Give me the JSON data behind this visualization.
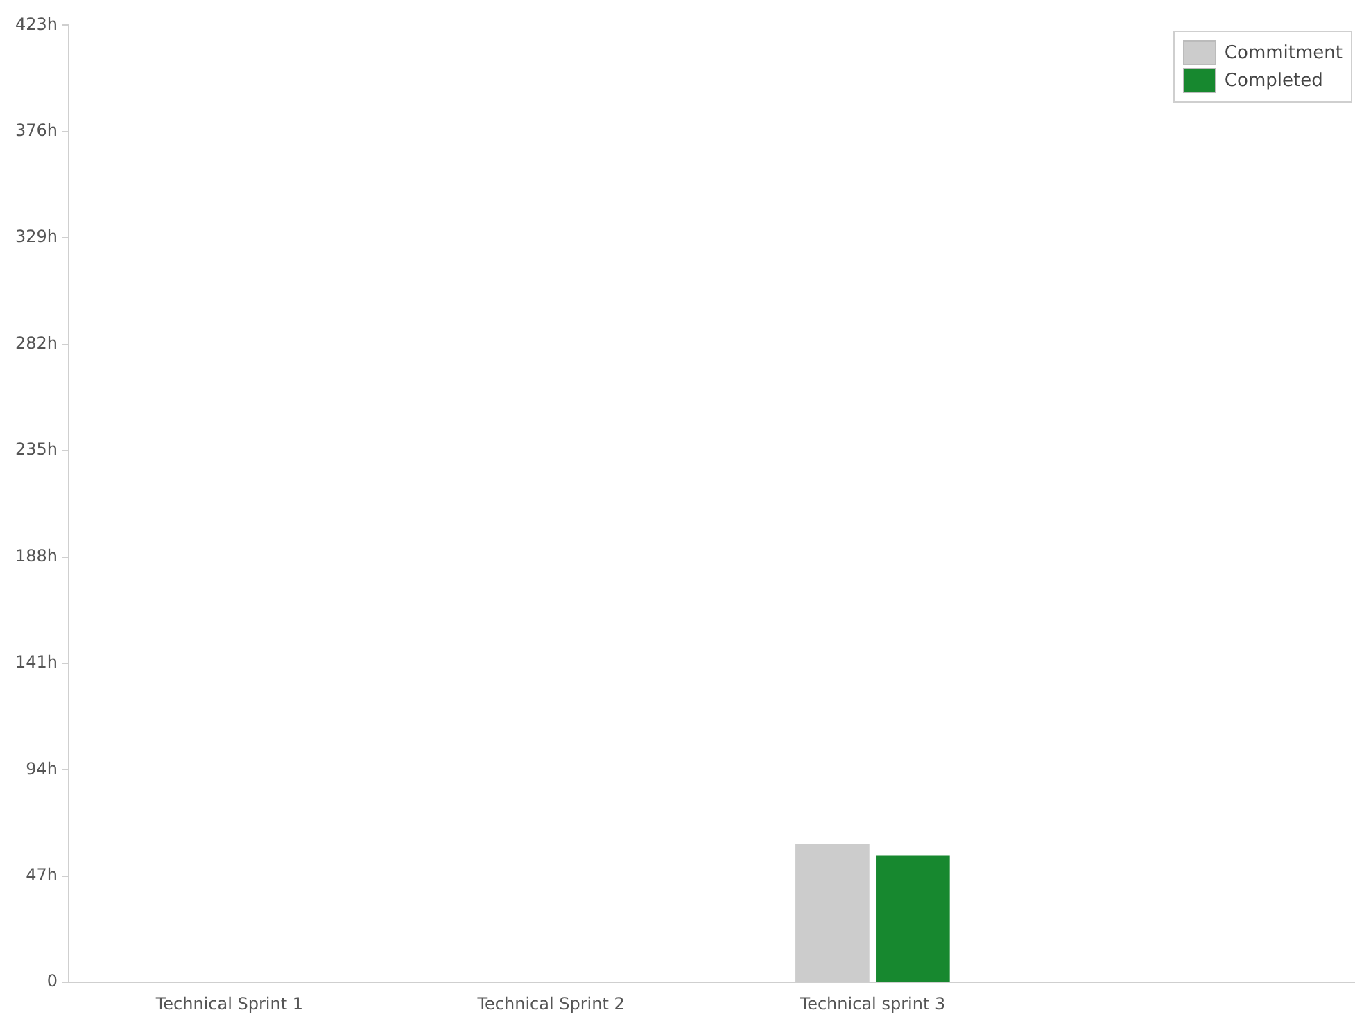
{
  "chart_data": {
    "type": "bar",
    "categories": [
      "Technical Sprint 1",
      "Technical Sprint 2",
      "Technical sprint 3",
      null
    ],
    "series": [
      {
        "name": "Commitment",
        "color": "#cccccc",
        "values": [
          0,
          0,
          61,
          0
        ]
      },
      {
        "name": "Completed",
        "color": "#17882f",
        "values": [
          0,
          0,
          56,
          0
        ]
      }
    ],
    "ylim": [
      0,
      423
    ],
    "yticks": [
      0,
      {
        "value": 47,
        "label": "47h"
      },
      {
        "value": 94,
        "label": "94h"
      },
      {
        "value": 141,
        "label": "141h"
      },
      {
        "value": 188,
        "label": "188h"
      },
      {
        "value": 235,
        "label": "235h"
      },
      {
        "value": 282,
        "label": "282h"
      },
      {
        "value": 329,
        "label": "329h"
      },
      {
        "value": 376,
        "label": "376h"
      },
      {
        "value": 423,
        "label": "423h"
      }
    ],
    "grid": false,
    "legend": "top right"
  }
}
